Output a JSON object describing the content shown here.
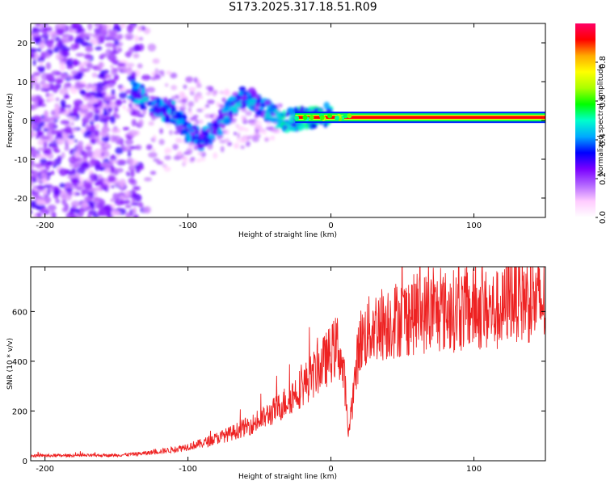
{
  "title": "S173.2025.317.18.51.R09",
  "chart_data": [
    {
      "type": "heatmap",
      "xlabel": "Height of straight line (km)",
      "ylabel": "Frequency (Hz)",
      "xlim": [
        -210,
        150
      ],
      "ylim": [
        -25,
        25
      ],
      "xticks": [
        -200,
        -100,
        0,
        100
      ],
      "yticks": [
        -20,
        -10,
        0,
        10,
        20
      ],
      "colorbar": {
        "label": "Normalized spectral amplitude",
        "range": [
          0,
          1
        ],
        "ticks": [
          0.0,
          0.2,
          0.4,
          0.6,
          0.8
        ],
        "tick_labels": [
          "0.0",
          "0.2",
          "0.4",
          "0.6",
          "0.8"
        ],
        "colormap": [
          "#ffffff",
          "#ffccff",
          "#b366ff",
          "#7a00ff",
          "#0000ff",
          "#00aaff",
          "#00ffcc",
          "#00ff00",
          "#aaff00",
          "#ffff00",
          "#ffaa00",
          "#ff0000",
          "#ff0066"
        ]
      },
      "features": {
        "noise_region_x": [
          -210,
          -120
        ],
        "chirp_points": [
          [
            -140,
            8
          ],
          [
            -125,
            4
          ],
          [
            -110,
            2
          ],
          [
            -100,
            -3
          ],
          [
            -90,
            -5
          ],
          [
            -80,
            -2
          ],
          [
            -70,
            3
          ],
          [
            -60,
            7
          ],
          [
            -50,
            4
          ],
          [
            -40,
            1
          ],
          [
            -30,
            0
          ],
          [
            -20,
            0.5
          ],
          [
            -10,
            1
          ],
          [
            0,
            1.5
          ]
        ],
        "steady_band": {
          "x_start": -25,
          "x_end": 150,
          "frequency": 0.8,
          "amplitude": 0.92
        }
      }
    },
    {
      "type": "line",
      "xlabel": "Height of straight line (km)",
      "ylabel": "SNR (10 * v/v)",
      "xlim": [
        -210,
        150
      ],
      "ylim": [
        0,
        780
      ],
      "xticks": [
        -200,
        -100,
        0,
        100
      ],
      "yticks": [
        0,
        200,
        400,
        600
      ],
      "color": "#ee2222",
      "envelope": {
        "x": [
          -210,
          -150,
          -130,
          -110,
          -90,
          -70,
          -50,
          -35,
          -20,
          -10,
          0,
          5,
          10,
          12,
          20,
          30,
          40,
          60,
          80,
          100,
          120,
          125,
          150
        ],
        "y": [
          20,
          22,
          30,
          45,
          70,
          110,
          160,
          220,
          300,
          360,
          430,
          470,
          300,
          100,
          480,
          540,
          560,
          590,
          600,
          610,
          600,
          670,
          630
        ]
      }
    }
  ]
}
